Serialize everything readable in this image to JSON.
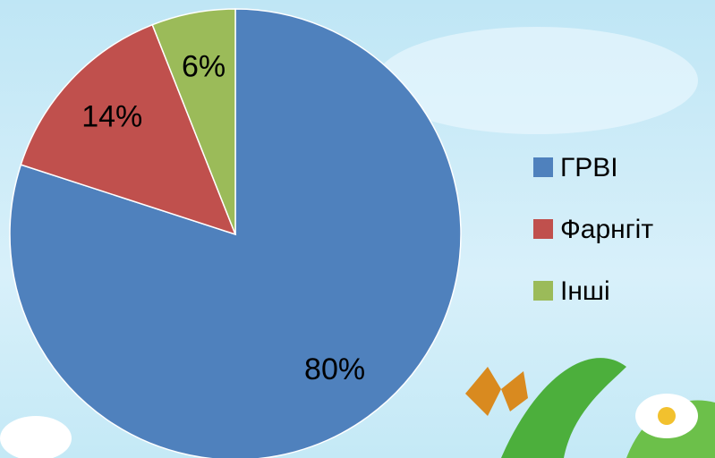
{
  "chart_data": {
    "type": "pie",
    "categories": [
      "ГРВІ",
      "Фарнгіт",
      "Інші"
    ],
    "values": [
      80,
      14,
      6
    ],
    "value_labels": [
      "80%",
      "14%",
      "6%"
    ],
    "colors": [
      "#4f81bd",
      "#c0504d",
      "#9bbb59"
    ],
    "legend": "right"
  }
}
